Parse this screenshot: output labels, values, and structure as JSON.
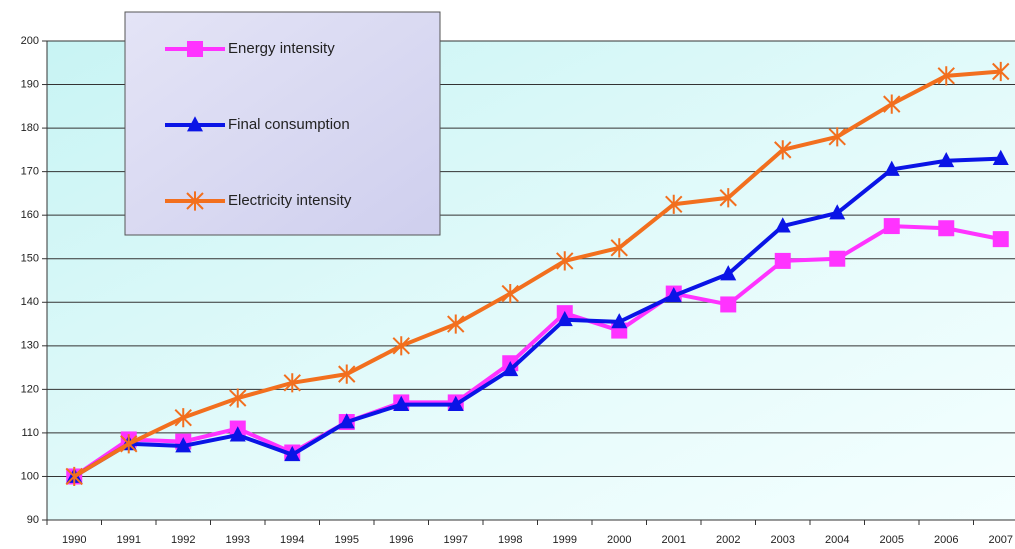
{
  "chart_data": {
    "type": "line",
    "categories": [
      "1990",
      "1991",
      "1992",
      "1993",
      "1994",
      "1995",
      "1996",
      "1997",
      "1998",
      "1999",
      "2000",
      "2001",
      "2002",
      "2003",
      "2004",
      "2005",
      "2006",
      "2007"
    ],
    "series": [
      {
        "name": "Energy intensity",
        "color": "#ff33ff",
        "marker": "square",
        "values": [
          100,
          108.5,
          108,
          111,
          105.5,
          112.5,
          117,
          117,
          126,
          137.5,
          133.5,
          142,
          139.5,
          149.5,
          150,
          157.5,
          157,
          154.5
        ]
      },
      {
        "name": "Final consumption",
        "color": "#0a14e6",
        "marker": "triangle",
        "values": [
          100,
          107.5,
          107,
          109.5,
          105,
          112.5,
          116.5,
          116.5,
          124.5,
          136,
          135.5,
          141.5,
          146.5,
          157.5,
          160.5,
          170.5,
          172.5,
          173
        ]
      },
      {
        "name": "Electricity intensity",
        "color": "#f26f1e",
        "marker": "asterisk",
        "values": [
          100,
          107.5,
          113.5,
          118,
          121.5,
          123.5,
          130,
          135,
          142,
          149.5,
          152.5,
          162.5,
          164,
          175,
          178,
          185.5,
          192,
          193
        ]
      }
    ],
    "ylim": [
      90,
      200
    ],
    "yticks": [
      90,
      100,
      110,
      120,
      130,
      140,
      150,
      160,
      170,
      180,
      190,
      200
    ],
    "grid": true
  }
}
